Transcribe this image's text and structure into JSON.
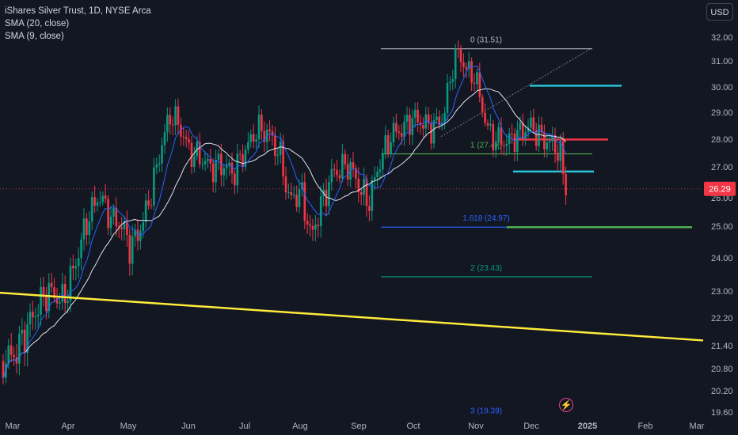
{
  "header": {
    "title": "iShares Silver Trust, 1D, NYSE Arca",
    "indicators": [
      "SMA (20, close)",
      "SMA (9, close)"
    ],
    "currency": "USD"
  },
  "chart_data": {
    "type": "candlestick",
    "y_ticks": [
      "32.00",
      "31.00",
      "30.00",
      "29.00",
      "28.00",
      "27.00",
      "26.00",
      "25.00",
      "24.00",
      "23.00",
      "22.20",
      "21.40",
      "20.80",
      "20.20",
      "19.60"
    ],
    "y_tick_values": [
      32.0,
      31.0,
      30.0,
      29.0,
      28.0,
      27.0,
      26.0,
      25.0,
      24.0,
      23.0,
      22.2,
      21.4,
      20.8,
      20.2,
      19.6
    ],
    "x_ticks": [
      "Mar",
      "Apr",
      "May",
      "Jun",
      "Jul",
      "Aug",
      "Sep",
      "Oct",
      "Nov",
      "Dec",
      "2025",
      "Feb",
      "Mar"
    ],
    "current_price": "26.29",
    "current_price_value": 26.29,
    "fib_labels": [
      "0 (31.51)",
      "1 (27.47)",
      "1.618 (24.97)",
      "2 (23.43)",
      "3 (19.39)"
    ],
    "fib_values": [
      31.51,
      27.47,
      24.97,
      23.43,
      19.39
    ],
    "horizontal_levels": [
      {
        "value": 30.05,
        "color": "#26c6da"
      },
      {
        "value": 27.99,
        "color": "#f23645"
      },
      {
        "value": 26.85,
        "color": "#26c6da"
      },
      {
        "value": 24.97,
        "color": "#4caf50"
      }
    ],
    "trendline": {
      "start": 22.95,
      "end": 21.55,
      "color": "#ffeb3b"
    },
    "colors": {
      "up": "#089981",
      "down": "#f23645",
      "sma20": "#e0e3eb",
      "sma9": "#2962ff",
      "background": "#131722"
    }
  }
}
